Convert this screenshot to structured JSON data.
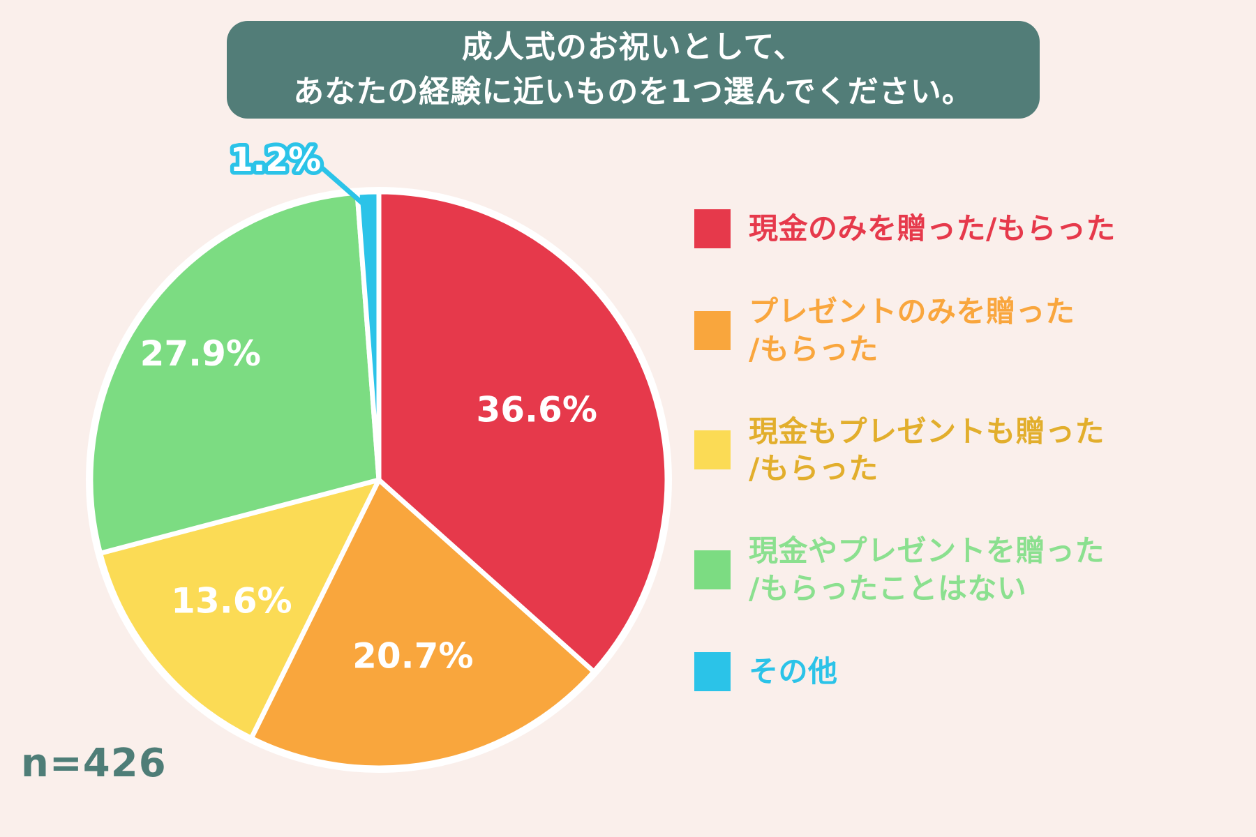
{
  "title": {
    "line1": "成人式のお祝いとして、",
    "line2": "あなたの経験に近いものを1つ選んでください。"
  },
  "footer": {
    "sample_size_label": "n=426"
  },
  "palette": {
    "background": "#FAEFEB",
    "title_box": "#527D78",
    "title_text": "#FFFFFF",
    "sample_size_text": "#4E7D77",
    "slice_border": "#FFFFFF",
    "value_label_text": "#FFFFFF"
  },
  "chart_data": {
    "type": "pie",
    "title": "成人式のお祝いとして、あなたの経験に近いものを1つ選んでください。",
    "sample_size": 426,
    "unit": "%",
    "direction": "clockwise",
    "start_angle": "12-oclock",
    "legend_position": "right",
    "categories": [
      "現金のみを贈った/もらった",
      "プレゼントのみを贈った/もらった",
      "現金もプレゼントも贈った/もらった",
      "現金やプレゼントを贈った/もらったことはない",
      "その他"
    ],
    "values": [
      36.6,
      20.7,
      13.6,
      27.9,
      1.2
    ],
    "value_labels": [
      "36.6%",
      "20.7%",
      "13.6%",
      "27.9%",
      "1.2%"
    ],
    "colors": [
      "#E6394B",
      "#F9A63D",
      "#FBDB55",
      "#7CDC82",
      "#2BC3E8"
    ]
  },
  "callout": {
    "value_label": "1.2%"
  },
  "legend": {
    "items": [
      {
        "label_lines": [
          "現金のみを贈った/もらった"
        ],
        "swatch_color": "#E6394B",
        "text_color": "#E6394B"
      },
      {
        "label_lines": [
          "プレゼントのみを贈った",
          "/もらった"
        ],
        "swatch_color": "#F9A63D",
        "text_color": "#F9A63D"
      },
      {
        "label_lines": [
          "現金もプレゼントも贈った",
          "/もらった"
        ],
        "swatch_color": "#FBDB55",
        "text_color": "#E2AE2C"
      },
      {
        "label_lines": [
          "現金やプレゼントを贈った",
          "/もらったことはない"
        ],
        "swatch_color": "#7CDC82",
        "text_color": "#8BE08F"
      },
      {
        "label_lines": [
          "その他"
        ],
        "swatch_color": "#2BC3E8",
        "text_color": "#2BC3E8"
      }
    ]
  }
}
